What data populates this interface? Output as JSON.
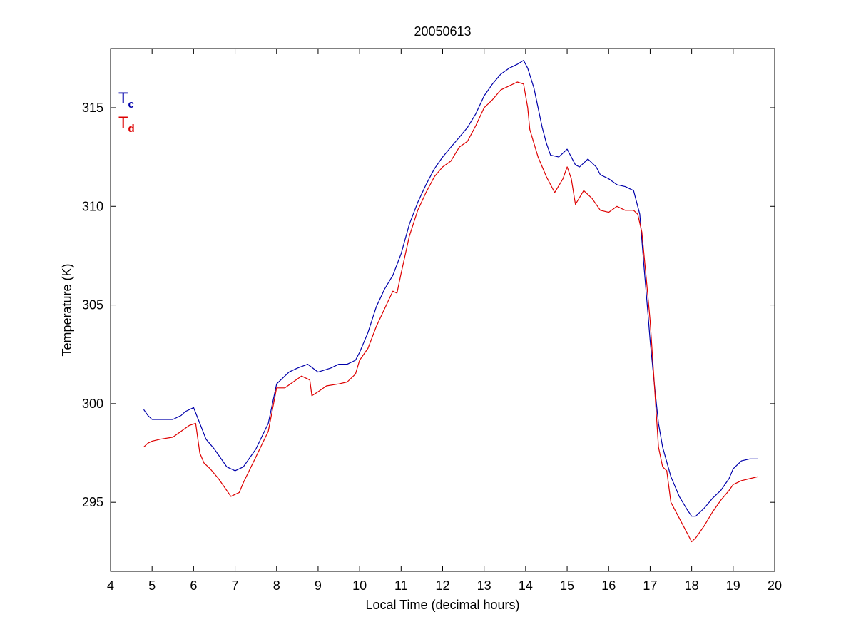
{
  "chart_data": {
    "type": "line",
    "title": "20050613",
    "xlabel": "Local Time (decimal hours)",
    "ylabel": "Temperature (K)",
    "xlim": [
      4,
      20
    ],
    "ylim": [
      291.5,
      318
    ],
    "xticks": [
      4,
      5,
      6,
      7,
      8,
      9,
      10,
      11,
      12,
      13,
      14,
      15,
      16,
      17,
      18,
      19,
      20
    ],
    "yticks": [
      295,
      300,
      305,
      310,
      315
    ],
    "grid": false,
    "legend": {
      "placement": "top-left",
      "entries": [
        {
          "main": "T",
          "sub": "c",
          "color": "#0000aa"
        },
        {
          "main": "T",
          "sub": "d",
          "color": "#dd0000"
        }
      ]
    },
    "series": [
      {
        "key": "Tc",
        "color": "#0000aa",
        "x": [
          4.8,
          4.9,
          5.0,
          5.5,
          5.7,
          5.8,
          6.0,
          6.15,
          6.3,
          6.5,
          6.8,
          7.0,
          7.2,
          7.5,
          7.8,
          8.0,
          8.3,
          8.5,
          8.75,
          9.0,
          9.3,
          9.5,
          9.7,
          9.9,
          10.0,
          10.2,
          10.4,
          10.6,
          10.8,
          11.0,
          11.2,
          11.4,
          11.6,
          11.8,
          12.0,
          12.2,
          12.4,
          12.6,
          12.8,
          13.0,
          13.2,
          13.4,
          13.6,
          13.8,
          13.95,
          14.05,
          14.2,
          14.4,
          14.5,
          14.6,
          14.8,
          15.0,
          15.2,
          15.3,
          15.5,
          15.7,
          15.8,
          16.0,
          16.2,
          16.4,
          16.6,
          16.75,
          16.85,
          16.95,
          17.0,
          17.1,
          17.2,
          17.3,
          17.5,
          17.7,
          17.9,
          18.0,
          18.1,
          18.3,
          18.5,
          18.7,
          18.9,
          19.0,
          19.2,
          19.4,
          19.6
        ],
        "y": [
          299.7,
          299.4,
          299.2,
          299.2,
          299.4,
          299.6,
          299.8,
          299.0,
          298.2,
          297.7,
          296.8,
          296.6,
          296.8,
          297.7,
          299.0,
          301.0,
          301.6,
          301.8,
          302.0,
          301.6,
          301.8,
          302.0,
          302.0,
          302.2,
          302.6,
          303.6,
          304.9,
          305.8,
          306.5,
          307.6,
          309.1,
          310.2,
          311.1,
          311.9,
          312.5,
          313.0,
          313.5,
          314.0,
          314.7,
          315.6,
          316.2,
          316.7,
          317.0,
          317.2,
          317.4,
          317.0,
          316.0,
          314.0,
          313.2,
          312.6,
          312.5,
          312.9,
          312.1,
          312.0,
          312.4,
          312.0,
          311.6,
          311.4,
          311.1,
          311.0,
          310.8,
          309.6,
          307.0,
          304.5,
          303.2,
          301.0,
          299.0,
          297.8,
          296.3,
          295.3,
          294.6,
          294.3,
          294.3,
          294.7,
          295.2,
          295.6,
          296.2,
          296.7,
          297.1,
          297.2,
          297.2
        ]
      },
      {
        "key": "Td",
        "color": "#dd0000",
        "x": [
          4.8,
          4.9,
          5.0,
          5.2,
          5.5,
          5.7,
          5.9,
          6.05,
          6.15,
          6.25,
          6.4,
          6.6,
          6.8,
          6.9,
          7.0,
          7.1,
          7.2,
          7.5,
          7.8,
          8.0,
          8.2,
          8.4,
          8.6,
          8.8,
          8.85,
          9.0,
          9.2,
          9.5,
          9.7,
          9.9,
          10.0,
          10.2,
          10.4,
          10.6,
          10.8,
          10.9,
          11.0,
          11.2,
          11.4,
          11.6,
          11.8,
          12.0,
          12.2,
          12.4,
          12.6,
          12.8,
          13.0,
          13.2,
          13.4,
          13.6,
          13.8,
          13.95,
          14.05,
          14.1,
          14.3,
          14.5,
          14.7,
          14.9,
          15.0,
          15.1,
          15.2,
          15.4,
          15.6,
          15.8,
          16.0,
          16.2,
          16.4,
          16.6,
          16.7,
          16.8,
          16.9,
          17.0,
          17.1,
          17.2,
          17.3,
          17.4,
          17.5,
          17.7,
          17.9,
          18.0,
          18.1,
          18.3,
          18.5,
          18.7,
          18.9,
          19.0,
          19.2,
          19.4,
          19.6
        ],
        "y": [
          297.8,
          298.0,
          298.1,
          298.2,
          298.3,
          298.6,
          298.9,
          299.0,
          297.5,
          297.0,
          296.7,
          296.2,
          295.6,
          295.3,
          295.4,
          295.5,
          296.0,
          297.3,
          298.6,
          300.8,
          300.8,
          301.1,
          301.4,
          301.2,
          300.4,
          300.6,
          300.9,
          301.0,
          301.1,
          301.5,
          302.2,
          302.8,
          303.9,
          304.8,
          305.7,
          305.6,
          306.6,
          308.5,
          309.8,
          310.7,
          311.5,
          312.0,
          312.3,
          313.0,
          313.3,
          314.1,
          315.0,
          315.4,
          315.9,
          316.1,
          316.3,
          316.2,
          315.0,
          313.9,
          312.5,
          311.5,
          310.7,
          311.4,
          312.0,
          311.4,
          310.1,
          310.8,
          310.4,
          309.8,
          309.7,
          310.0,
          309.8,
          309.8,
          309.6,
          308.7,
          306.5,
          304.2,
          301.0,
          297.8,
          296.8,
          296.6,
          295.0,
          294.2,
          293.4,
          293.0,
          293.2,
          293.8,
          294.5,
          295.1,
          295.6,
          295.9,
          296.1,
          296.2,
          296.3
        ]
      }
    ]
  }
}
